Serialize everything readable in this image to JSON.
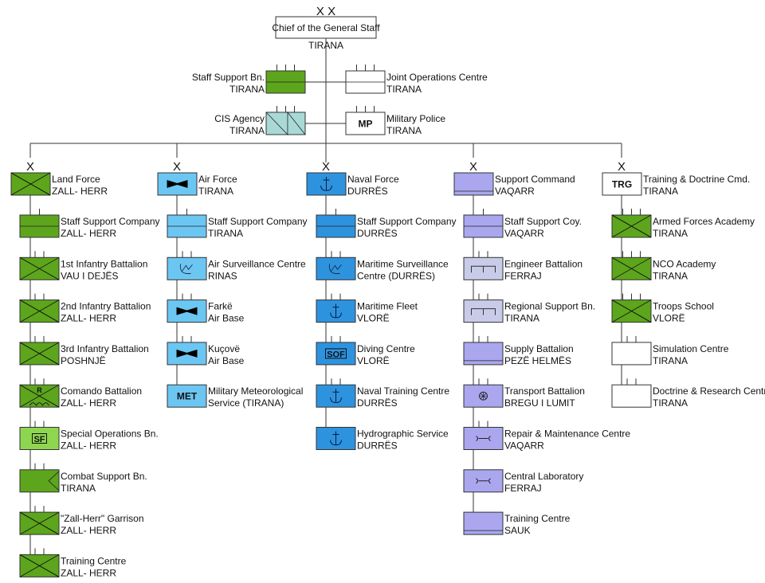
{
  "colors": {
    "land": "#5ca51c",
    "special": "#8fd650",
    "air": "#6cc6f2",
    "naval": "#2e93df",
    "support": "#aaa7ef",
    "engineer": "#c9cce8",
    "cis": "#a9d9d7",
    "white": "#ffffff"
  },
  "top": {
    "echelon_mark": "X X",
    "title": "Chief of the General Staff",
    "location": "TIRANA"
  },
  "staff_units": [
    {
      "lines": [
        "Staff Support Bn.",
        "TIRANA"
      ],
      "side": "left",
      "color": "land",
      "symbol": "staff",
      "echelon": 3
    },
    {
      "lines": [
        "Joint Operations Centre",
        "TIRANA"
      ],
      "side": "right",
      "color": "white",
      "symbol": "staff",
      "echelon": 3
    },
    {
      "lines": [
        "CIS Agency",
        "TIRANA"
      ],
      "side": "left",
      "color": "cis",
      "symbol": "signal",
      "echelon": 3
    },
    {
      "lines": [
        "Military Police",
        "TIRANA"
      ],
      "side": "right",
      "color": "white",
      "symbol": "text",
      "text": "MP",
      "echelon": 3
    }
  ],
  "commands": [
    {
      "echelon_mark": "X",
      "hq": {
        "lines": [
          "Land Force",
          "ZALL- HERR"
        ],
        "color": "land",
        "symbol": "infantry"
      },
      "units": [
        {
          "lines": [
            "Staff Support Company",
            "ZALL- HERR"
          ],
          "color": "land",
          "symbol": "staff",
          "echelon": 1
        },
        {
          "lines": [
            "1st Infantry Battalion",
            "VAU I DEJËS"
          ],
          "color": "land",
          "symbol": "infantry",
          "echelon": 2
        },
        {
          "lines": [
            "2nd Infantry Battalion",
            "ZALL- HERR"
          ],
          "color": "land",
          "symbol": "infantry",
          "echelon": 2
        },
        {
          "lines": [
            "3rd Infantry Battalion",
            "POSHNJË"
          ],
          "color": "land",
          "symbol": "infantry",
          "echelon": 2
        },
        {
          "lines": [
            "Comando Battalion",
            "ZALL- HERR"
          ],
          "color": "land",
          "symbol": "commando",
          "text": "R",
          "echelon": 2
        },
        {
          "lines": [
            "Special Operations Bn.",
            "ZALL- HERR"
          ],
          "color": "special",
          "symbol": "boxtext",
          "text": "SF",
          "echelon": 2
        },
        {
          "lines": [
            "Combat Support Bn.",
            "TIRANA"
          ],
          "color": "land",
          "symbol": "chevron",
          "echelon": 2
        },
        {
          "lines": [
            "\"Zall-Herr\" Garrison",
            "ZALL- HERR"
          ],
          "color": "land",
          "symbol": "infantry",
          "echelon": 2
        },
        {
          "lines": [
            "Training Centre",
            "ZALL- HERR"
          ],
          "color": "land",
          "symbol": "infantry",
          "echelon": 2
        }
      ]
    },
    {
      "echelon_mark": "X",
      "hq": {
        "lines": [
          "Air Force",
          "TIRANA"
        ],
        "color": "air",
        "symbol": "aircraft"
      },
      "units": [
        {
          "lines": [
            "Staff Support Company",
            "TIRANA"
          ],
          "color": "air",
          "symbol": "staff",
          "echelon": 1
        },
        {
          "lines": [
            "Air Surveillance Centre",
            "RINAS"
          ],
          "color": "air",
          "symbol": "radar",
          "echelon": 2
        },
        {
          "lines": [
            "Farkë",
            "Air Base"
          ],
          "color": "air",
          "symbol": "aircraft",
          "echelon": 2
        },
        {
          "lines": [
            "Kuçovë",
            "Air Base"
          ],
          "color": "air",
          "symbol": "aircraft",
          "echelon": 2
        },
        {
          "lines": [
            "Military Meteorological",
            "Service (TIRANA)"
          ],
          "color": "air",
          "symbol": "text",
          "text": "MET",
          "echelon": 0
        }
      ]
    },
    {
      "echelon_mark": "X",
      "hq": {
        "lines": [
          "Naval Force",
          "DURRËS"
        ],
        "color": "naval",
        "symbol": "anchor"
      },
      "units": [
        {
          "lines": [
            "Staff Support Company",
            "DURRËS"
          ],
          "color": "naval",
          "symbol": "staff",
          "echelon": 1
        },
        {
          "lines": [
            "Maritime Surveillance",
            "Centre (DURRËS)"
          ],
          "color": "naval",
          "symbol": "radar",
          "echelon": 2
        },
        {
          "lines": [
            "Maritime Fleet",
            "VLORË"
          ],
          "color": "naval",
          "symbol": "anchor",
          "echelon": 2
        },
        {
          "lines": [
            "Diving Centre",
            "VLORË"
          ],
          "color": "naval",
          "symbol": "boxtext",
          "text": "SOF",
          "echelon": 2
        },
        {
          "lines": [
            "Naval Training Centre",
            "DURRËS"
          ],
          "color": "naval",
          "symbol": "anchor",
          "echelon": 2
        },
        {
          "lines": [
            "Hydrographic Service",
            "DURRËS"
          ],
          "color": "naval",
          "symbol": "anchor",
          "echelon": 0
        }
      ]
    },
    {
      "echelon_mark": "X",
      "hq": {
        "lines": [
          "Support Command",
          "VAQARR"
        ],
        "color": "support",
        "symbol": "supply"
      },
      "units": [
        {
          "lines": [
            "Staff Support Coy.",
            "VAQARR"
          ],
          "color": "support",
          "symbol": "staff",
          "echelon": 1
        },
        {
          "lines": [
            "Engineer Battalion",
            "FERRAJ"
          ],
          "color": "engineer",
          "symbol": "engineer",
          "echelon": 2
        },
        {
          "lines": [
            "Regional Support Bn.",
            "TIRANA"
          ],
          "color": "engineer",
          "symbol": "engineer",
          "echelon": 2
        },
        {
          "lines": [
            "Supply Battalion",
            "PEZË HELMËS"
          ],
          "color": "support",
          "symbol": "supply",
          "echelon": 2
        },
        {
          "lines": [
            "Transport Battalion",
            "BREGU I LUMIT"
          ],
          "color": "support",
          "symbol": "transport",
          "echelon": 2
        },
        {
          "lines": [
            "Repair &  Maintenance Centre",
            "VAQARR"
          ],
          "color": "support",
          "symbol": "maintenance",
          "echelon": 2
        },
        {
          "lines": [
            "Central Laboratory",
            "FERRAJ"
          ],
          "color": "support",
          "symbol": "maintenance",
          "echelon": 0
        },
        {
          "lines": [
            "Training Centre",
            "SAUK"
          ],
          "color": "support",
          "symbol": "supply",
          "echelon": 0
        }
      ]
    },
    {
      "echelon_mark": "X",
      "hq": {
        "lines": [
          "Training & Doctrine Cmd.",
          "TIRANA"
        ],
        "color": "white",
        "symbol": "text",
        "text": "TRG"
      },
      "units": [
        {
          "lines": [
            "Armed Forces Academy",
            "TIRANA"
          ],
          "color": "land",
          "symbol": "infantry",
          "echelon": 3
        },
        {
          "lines": [
            "NCO Academy",
            "TIRANA"
          ],
          "color": "land",
          "symbol": "infantry",
          "echelon": 3
        },
        {
          "lines": [
            "Troops School",
            "VLORË"
          ],
          "color": "land",
          "symbol": "infantry",
          "echelon": 3
        },
        {
          "lines": [
            "Simulation Centre",
            "TIRANA"
          ],
          "color": "white",
          "symbol": "none",
          "echelon": 2
        },
        {
          "lines": [
            "Doctrine & Research Centre",
            "TIRANA"
          ],
          "color": "white",
          "symbol": "none",
          "echelon": 2
        }
      ]
    }
  ]
}
